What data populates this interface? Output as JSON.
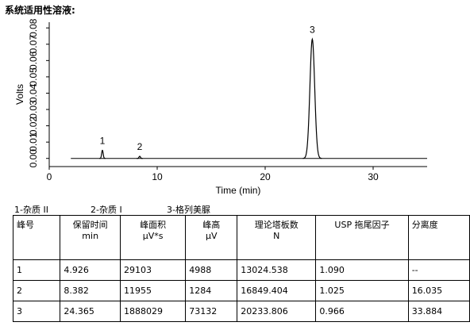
{
  "header": {
    "title": "系统适用性溶液:"
  },
  "chart_data": {
    "type": "line",
    "y_label": "Volts",
    "x_label": "Time (min)",
    "xlim": [
      0,
      35
    ],
    "ylim": [
      -0.005,
      0.0835
    ],
    "xticks": [
      0,
      10,
      20,
      30
    ],
    "yticks": [
      {
        "value": 0,
        "label": "0.00"
      },
      {
        "value": 0.01,
        "label": "0.01"
      },
      {
        "value": 0.02,
        "label": "0.02"
      },
      {
        "value": 0.03,
        "label": "0.03"
      },
      {
        "value": 0.04,
        "label": "0.04"
      },
      {
        "value": 0.05,
        "label": "0.05"
      },
      {
        "value": 0.06,
        "label": "0.06"
      },
      {
        "value": 0.07,
        "label": "0.07"
      },
      {
        "value": 0.08,
        "label": "0.08"
      }
    ],
    "peaks": {
      "labels": [
        "1",
        "2",
        "3"
      ],
      "x": [
        4.926,
        8.382,
        24.365
      ],
      "values": [
        0.005,
        0.0013,
        0.0731
      ]
    },
    "color": "#000000"
  },
  "legend": [
    "1-杂质 II",
    "2-杂质 I",
    "3-格列美脲"
  ],
  "table": {
    "header": [
      [
        "峰号"
      ],
      [
        "保留时间",
        "min"
      ],
      [
        "峰面积",
        "μV*s"
      ],
      [
        "峰高",
        "μV"
      ],
      [
        "理论塔板数",
        "N"
      ],
      [
        "USP 拖尾因子"
      ],
      [
        "分离度"
      ]
    ],
    "rows": [
      [
        "1",
        "4.926",
        "29103",
        "4988",
        "13024.538",
        "1.090",
        "--"
      ],
      [
        "2",
        "8.382",
        "11955",
        "1284",
        "16849.404",
        "1.025",
        "16.035"
      ],
      [
        "3",
        "24.365",
        "1888029",
        "73132",
        "20233.806",
        "0.966",
        "33.884"
      ]
    ]
  }
}
